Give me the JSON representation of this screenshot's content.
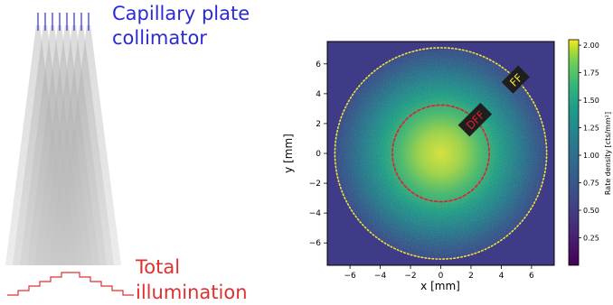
{
  "left_panel": {
    "collimator_label_line1": "Capillary plate",
    "collimator_label_line2": "collimator",
    "illumination_label_line1": "Total",
    "illumination_label_line2": "illumination",
    "colors": {
      "collimator": "#2a2ad6",
      "illumination": "#e03030"
    }
  },
  "chart_data": {
    "type": "heatmap",
    "title": "",
    "xlabel": "x [mm]",
    "ylabel": "y [mm]",
    "xlim": [
      -7.5,
      7.5
    ],
    "ylim": [
      -7.5,
      7.5
    ],
    "x_ticks": [
      -6,
      -4,
      -2,
      0,
      2,
      4,
      6
    ],
    "y_ticks": [
      -6,
      -4,
      -2,
      0,
      2,
      4,
      6
    ],
    "colorbar": {
      "label": "Rate density [cts/mm²]",
      "range": [
        0.0,
        2.05
      ],
      "ticks": [
        0.25,
        0.5,
        0.75,
        1.0,
        1.25,
        1.5,
        1.75,
        2.0
      ],
      "tick_labels": [
        "0.25",
        "0.50",
        "0.75",
        "1.00",
        "1.25",
        "1.50",
        "1.75",
        "2.00"
      ],
      "colormap": "viridis"
    },
    "intensity_profile": {
      "peak": 1.9,
      "center": [
        0,
        0
      ],
      "radius_mm": 7.0,
      "edge_value": 0.3
    },
    "annotations": [
      {
        "text": "DFF",
        "shape": "circle",
        "center": [
          0,
          0
        ],
        "radius": 3.2,
        "line": "dashed",
        "color": "#e0202a",
        "text_color": "#e0202a"
      },
      {
        "text": "FF",
        "shape": "circle",
        "center": [
          0,
          0
        ],
        "radius": 7.0,
        "line": "dotted",
        "color": "#f2e23a",
        "text_color": "#f2e23a"
      }
    ]
  }
}
